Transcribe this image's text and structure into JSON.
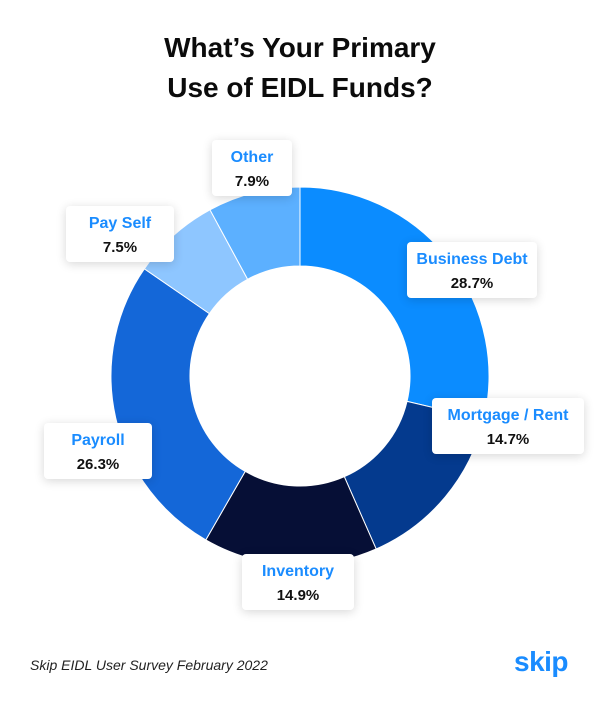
{
  "header": {
    "title_line1": "What’s Your Primary",
    "title_line2": "Use of EIDL Funds?"
  },
  "chart_data": {
    "type": "pie",
    "variant": "donut",
    "categories": [
      "Business Debt",
      "Mortgage / Rent",
      "Inventory",
      "Payroll",
      "Pay Self",
      "Other"
    ],
    "values": [
      28.7,
      14.7,
      14.9,
      26.3,
      7.5,
      7.9
    ],
    "value_labels": [
      "28.7%",
      "14.7%",
      "14.9%",
      "26.3%",
      "7.5%",
      "7.9%"
    ],
    "colors": [
      "#0b8cff",
      "#043a8e",
      "#060f36",
      "#1467d8",
      "#8ec6ff",
      "#5cb0ff"
    ]
  },
  "footer": {
    "source": "Skip EIDL User Survey February 2022",
    "logo": "skip"
  }
}
